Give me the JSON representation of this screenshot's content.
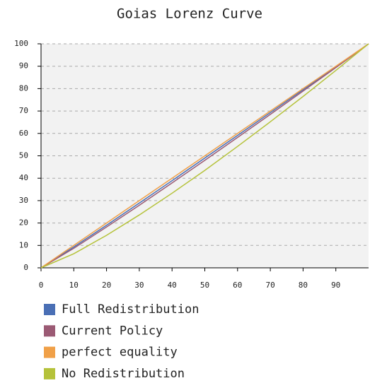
{
  "chart_data": {
    "type": "line",
    "title": "Goias Lorenz Curve",
    "x": [
      0,
      10,
      20,
      30,
      40,
      50,
      60,
      70,
      80,
      90,
      100
    ],
    "series": [
      {
        "name": "Full Redistribution",
        "color": "#4a6fb5",
        "values": [
          0,
          9.3,
          19.0,
          28.9,
          38.9,
          49.0,
          59.1,
          69.3,
          79.5,
          89.7,
          100
        ]
      },
      {
        "name": "Current Policy",
        "color": "#9b5a74",
        "values": [
          0,
          8.7,
          18.2,
          27.9,
          37.9,
          48.0,
          58.2,
          68.5,
          78.9,
          89.4,
          100
        ]
      },
      {
        "name": "perfect equality",
        "color": "#f0a048",
        "values": [
          0,
          10,
          20,
          30,
          40,
          50,
          60,
          70,
          80,
          90,
          100
        ]
      },
      {
        "name": "No Redistribution",
        "color": "#b5c23a",
        "values": [
          0,
          6.3,
          14.5,
          23.6,
          33.3,
          43.5,
          54.2,
          65.2,
          76.5,
          88.1,
          100
        ]
      }
    ],
    "xlim": [
      0,
      100
    ],
    "xticks": [
      0,
      10,
      20,
      30,
      40,
      50,
      60,
      70,
      80,
      90
    ],
    "ylim": [
      0,
      100
    ],
    "yticks": [
      0,
      10,
      20,
      30,
      40,
      50,
      60,
      70,
      80,
      90,
      100
    ],
    "grid": true
  }
}
